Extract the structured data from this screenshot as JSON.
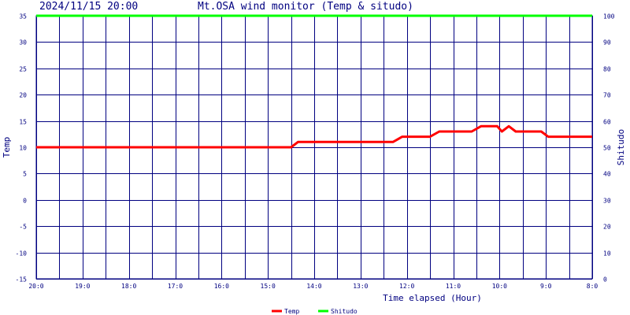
{
  "header": {
    "timestamp": "2024/11/15 20:00",
    "title": "Mt.OSA wind monitor (Temp & situdo)"
  },
  "colors": {
    "grid": "#000080",
    "temp": "#ff0000",
    "humidity": "#00ff00",
    "text": "#000080"
  },
  "chart_data": {
    "type": "line",
    "xlabel": "Time elapsed (Hour)",
    "ylabel_left": "Temp",
    "ylabel_right": "Shitudo",
    "ylim_left": [
      -15,
      35
    ],
    "ylim_right": [
      0,
      100
    ],
    "yticks_left": [
      "35",
      "30",
      "25",
      "20",
      "15",
      "10",
      "5",
      "0",
      "-5",
      "-10",
      "-15"
    ],
    "yticks_right": [
      "100",
      "90",
      "80",
      "70",
      "60",
      "50",
      "40",
      "30",
      "20",
      "10",
      "0"
    ],
    "xlim": [
      20,
      8
    ],
    "xticks": [
      {
        "v": 20,
        "label": "20:0"
      },
      {
        "v": 19,
        "label": "19:0"
      },
      {
        "v": 18,
        "label": "18:0"
      },
      {
        "v": 17,
        "label": "17:0"
      },
      {
        "v": 16,
        "label": "16:0"
      },
      {
        "v": 15,
        "label": "15:0"
      },
      {
        "v": 14,
        "label": "14:0"
      },
      {
        "v": 13,
        "label": "13:0"
      },
      {
        "v": 12,
        "label": "12:0"
      },
      {
        "v": 11,
        "label": "11:0"
      },
      {
        "v": 10,
        "label": "10:0"
      },
      {
        "v": 9,
        "label": "9:0"
      },
      {
        "v": 8,
        "label": "8:0"
      }
    ],
    "grid": true,
    "series": [
      {
        "name": "Temp",
        "axis": "left",
        "x": [
          20,
          14.5,
          14.35,
          12.3,
          12.1,
          11.5,
          11.3,
          10.6,
          10.4,
          10.05,
          9.95,
          9.8,
          9.65,
          9.1,
          8.95,
          8
        ],
        "y": [
          10,
          10,
          11,
          11,
          12,
          12,
          13,
          13,
          14,
          14,
          13,
          14,
          13,
          13,
          12,
          12
        ]
      },
      {
        "name": "Shitudo",
        "axis": "right",
        "x": [
          20,
          8
        ],
        "y": [
          100,
          100
        ]
      }
    ],
    "legend": {
      "placement": "bottom-center",
      "items": [
        "Temp",
        "Shitudo"
      ]
    }
  }
}
